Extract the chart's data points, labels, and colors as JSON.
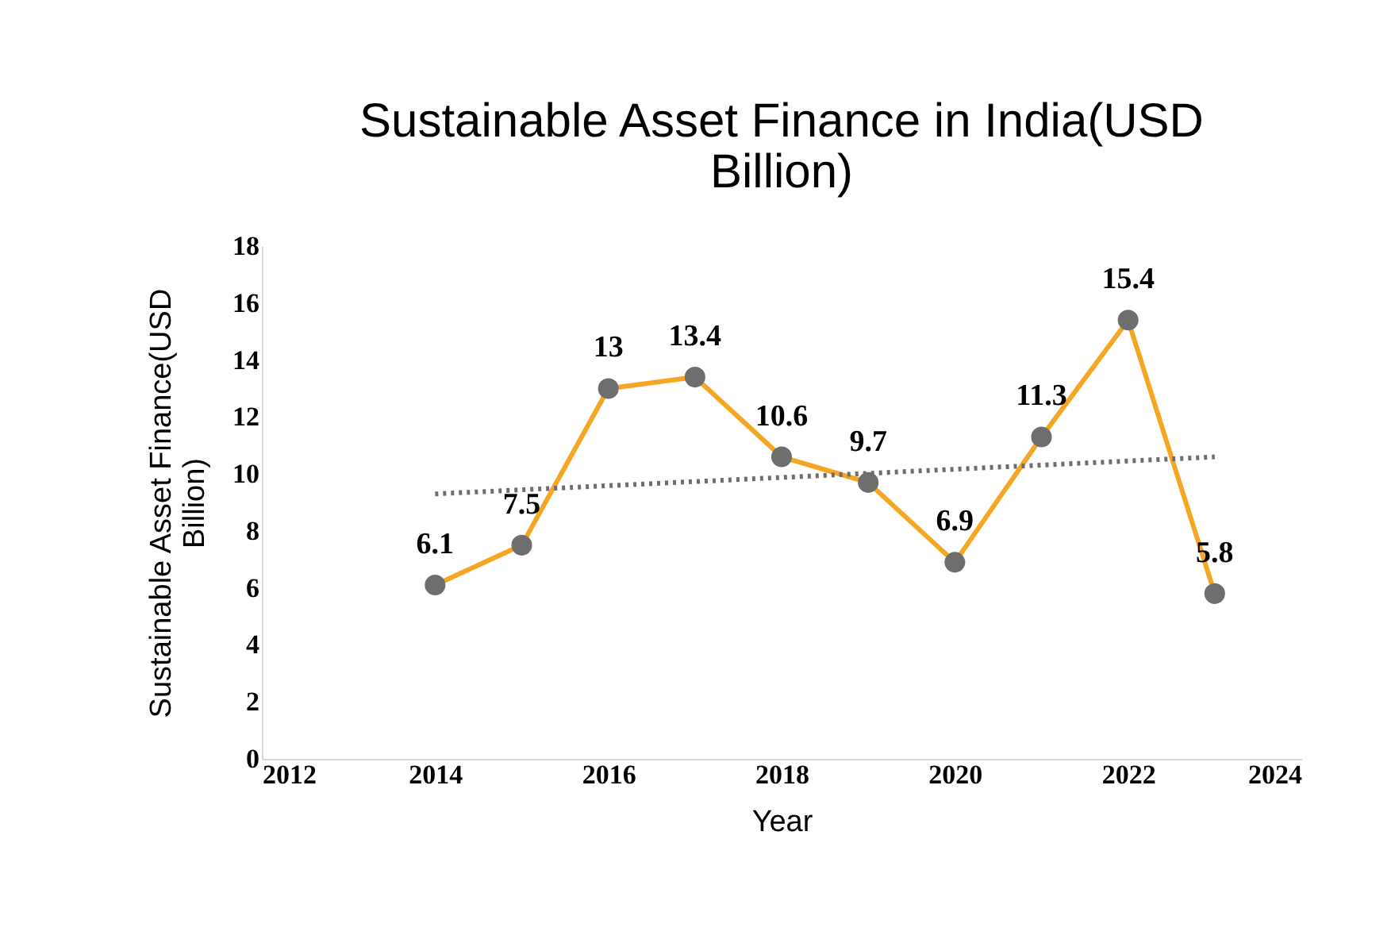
{
  "chart_data": {
    "type": "line",
    "title": "Sustainable Asset Finance in India(USD Billion)",
    "xlabel": "Year",
    "ylabel": "Sustainable Asset Finance(USD Billion)",
    "x": [
      2014,
      2015,
      2016,
      2017,
      2018,
      2019,
      2020,
      2021,
      2022,
      2023
    ],
    "series": [
      {
        "color": "#f5a623",
        "colors": [
          "#6e6e6e",
          "#6e6e6e",
          "#6e6e6e",
          "#6e6e6e",
          "#6e6e6e",
          "#6e6e6e",
          "#6e6e6e",
          "#6e6e6e",
          "#6e6e6e",
          "#6e6e6e"
        ],
        "marker": "circle",
        "line_style": "solid",
        "values": [
          6.1,
          7.5,
          13,
          13.4,
          10.6,
          9.7,
          6.9,
          11.3,
          15.4,
          5.8
        ],
        "value_labels": [
          "6.1",
          "7.5",
          "13",
          "13.4",
          "10.6",
          "9.7",
          "6.9",
          "11.3",
          "15.4",
          "5.8"
        ]
      },
      {
        "type": "line",
        "color": "#6e6e6e",
        "marker": "none",
        "line_style": "dotted",
        "x": [
          2014,
          2023
        ],
        "values": [
          9.3,
          10.6
        ]
      }
    ],
    "xlim": [
      2012,
      2024
    ],
    "xticks": [
      2012,
      2014,
      2016,
      2018,
      2020,
      2022,
      2024
    ],
    "ylim": [
      0,
      18
    ],
    "yticks": [
      0,
      2,
      4,
      6,
      8,
      10,
      12,
      14,
      16,
      18
    ],
    "grid": false
  }
}
